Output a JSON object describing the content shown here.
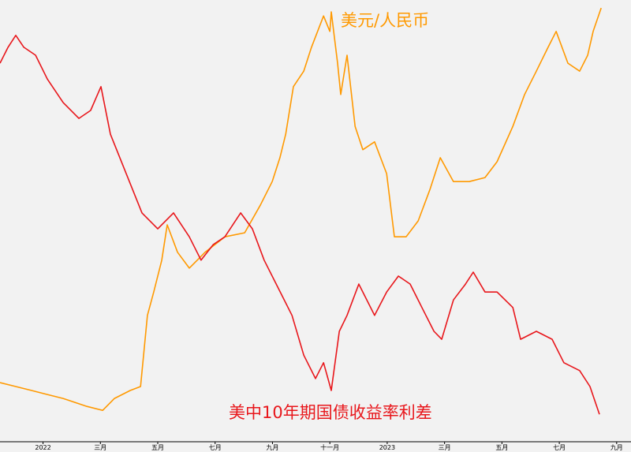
{
  "chart_data": {
    "type": "line",
    "xlim": [
      -1.5,
      20.5
    ],
    "ylim": [
      0,
      100
    ],
    "xticks": [
      {
        "value": 0,
        "label": "2022"
      },
      {
        "value": 2,
        "label": "三月"
      },
      {
        "value": 4,
        "label": "五月"
      },
      {
        "value": 6,
        "label": "七月"
      },
      {
        "value": 8,
        "label": "九月"
      },
      {
        "value": 10,
        "label": "十一月"
      },
      {
        "value": 12,
        "label": "2023"
      },
      {
        "value": 14,
        "label": "三月"
      },
      {
        "value": 16,
        "label": "五月"
      },
      {
        "value": 18,
        "label": "七月"
      },
      {
        "value": 20,
        "label": "九月"
      }
    ],
    "grid": false,
    "series": [
      {
        "name": "美元/人民币",
        "color": "#ff9900",
        "x": [
          -1.5,
          -0.95,
          -0.4,
          0.15,
          0.7,
          1.53,
          2.08,
          2.49,
          3.04,
          3.4,
          3.64,
          3.86,
          4.14,
          4.33,
          4.69,
          5.1,
          5.65,
          6.34,
          7.03,
          7.58,
          7.99,
          8.26,
          8.46,
          8.73,
          9.09,
          9.36,
          9.78,
          10.0,
          10.05,
          10.27,
          10.38,
          10.6,
          10.88,
          11.15,
          11.56,
          11.98,
          12.25,
          12.66,
          13.08,
          13.49,
          13.85,
          14.31,
          14.86,
          15.41,
          15.83,
          16.38,
          16.79,
          17.2,
          17.61,
          17.89,
          18.3,
          18.71,
          18.99,
          19.18,
          19.46
        ],
        "values": [
          13.4,
          12.5,
          11.6,
          10.7,
          9.8,
          8.0,
          7.1,
          9.8,
          11.6,
          12.5,
          28.6,
          33.9,
          41.1,
          49.1,
          42.9,
          39.3,
          42.9,
          46.4,
          47.3,
          53.6,
          58.9,
          64.3,
          69.6,
          80.4,
          83.9,
          89.3,
          96.4,
          92.9,
          97.3,
          85.7,
          78.6,
          87.5,
          71.4,
          66.1,
          67.9,
          60.7,
          46.4,
          46.4,
          50,
          57.1,
          64.3,
          58.9,
          58.9,
          59.8,
          63.4,
          71.4,
          78.6,
          83.9,
          89.3,
          92.9,
          85.7,
          83.9,
          87.5,
          92.9,
          98.2
        ]
      },
      {
        "name": "美中10年期国债收益率利差",
        "color": "#e8161b",
        "x": [
          -1.5,
          -1.22,
          -0.95,
          -0.67,
          -0.26,
          0.15,
          0.7,
          1.25,
          1.66,
          2.02,
          2.35,
          2.9,
          3.45,
          4.0,
          4.55,
          5.1,
          5.51,
          5.93,
          6.34,
          6.89,
          7.3,
          7.71,
          8.13,
          8.68,
          9.09,
          9.5,
          9.78,
          10.05,
          10.33,
          10.6,
          11.01,
          11.56,
          11.98,
          12.39,
          12.8,
          13.21,
          13.63,
          13.9,
          14.31,
          14.73,
          15.0,
          15.41,
          15.83,
          16.38,
          16.65,
          17.2,
          17.75,
          18.16,
          18.71,
          19.07,
          19.4
        ],
        "values": [
          85.7,
          89.3,
          92.0,
          89.3,
          87.5,
          82.1,
          76.8,
          73.2,
          75,
          80.4,
          69.6,
          60.7,
          51.8,
          48.2,
          51.8,
          46.4,
          41.1,
          44.6,
          46.4,
          51.8,
          48.2,
          41.1,
          35.7,
          28.6,
          19.6,
          14.3,
          17.9,
          11.6,
          25,
          28.6,
          35.7,
          28.6,
          33.9,
          37.5,
          35.7,
          30.4,
          25,
          23.2,
          32.1,
          35.7,
          38.4,
          33.9,
          33.9,
          30.4,
          23.2,
          25,
          23.2,
          17.9,
          16.1,
          12.5,
          6.2
        ]
      }
    ]
  }
}
